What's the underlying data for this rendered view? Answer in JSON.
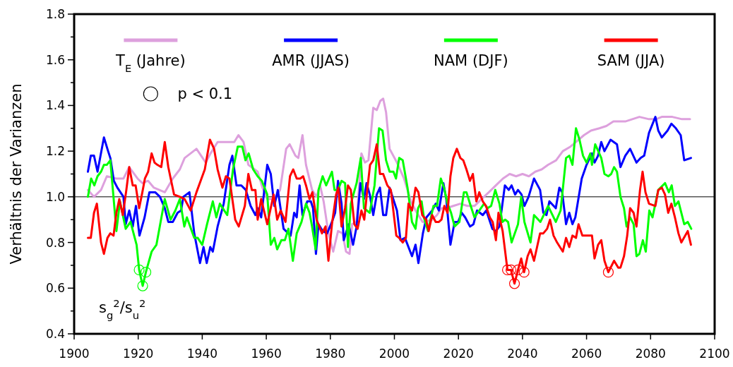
{
  "chart_data": {
    "type": "line",
    "ylabel": "Verhältnis der Varianzen",
    "xlim": [
      1900,
      2100
    ],
    "ylim": [
      0.4,
      1.8
    ],
    "xticks": [
      1900,
      1920,
      1940,
      1960,
      1980,
      2000,
      2020,
      2040,
      2060,
      2080,
      2100
    ],
    "yticks": [
      {
        "value": 0.4,
        "label": "0.4"
      },
      {
        "value": 0.5,
        "label": null
      },
      {
        "value": 0.6,
        "label": "0.6"
      },
      {
        "value": 0.7,
        "label": null
      },
      {
        "value": 0.8,
        "label": "0.8"
      },
      {
        "value": 0.9,
        "label": null
      },
      {
        "value": 1,
        "label": "1.0"
      },
      {
        "value": 1.1,
        "label": null
      },
      {
        "value": 1.2,
        "label": "1.2"
      },
      {
        "value": 1.3,
        "label": null
      },
      {
        "value": 1.4,
        "label": "1.4"
      },
      {
        "value": 1.5,
        "label": null
      },
      {
        "value": 1.6,
        "label": "1.6"
      },
      {
        "value": 1.7,
        "label": null
      },
      {
        "value": 1.8,
        "label": "1.8"
      }
    ],
    "grid": false,
    "legend": "top",
    "ref_lines": [
      {
        "axis": "y",
        "value": 1,
        "color": "#000000"
      }
    ],
    "annotations": [
      "s$_{g}$$^{2}$/s$_{u}$$^{2}$",
      "p < 0.1"
    ],
    "series": [
      {
        "name": "T$_{E}$ (Jahre)",
        "color": "#dda0dd",
        "x": [
          1904.3,
          1906.2,
          1908.4,
          1910.2,
          1913.2,
          1915.4,
          1917.2,
          1919.8,
          1921.3,
          1923.1,
          1924.9,
          1928.3,
          1930.8,
          1933,
          1934.5,
          1938.2,
          1941.1,
          1942.6,
          1944.8,
          1947.8,
          1950,
          1951.3,
          1952.9,
          1954.4,
          1957.3,
          1958.8,
          1960.3,
          1962.5,
          1964.3,
          1966.2,
          1967.3,
          1969.1,
          1970,
          1971.3,
          1972.4,
          1974.3,
          1975.7,
          1976.8,
          1977.9,
          1979.4,
          1980.9,
          1982.4,
          1983.8,
          1984.9,
          1986,
          1986.8,
          1988.2,
          1989.7,
          1990.8,
          1991.9,
          1993.4,
          1994.5,
          1995.6,
          1996.5,
          1997.4,
          1998.5,
          2000.8,
          2003,
          2005.2,
          2006.6,
          2008.8,
          2011.8,
          2013.3,
          2014.7,
          2016.2,
          2018.4,
          2020.6,
          2022.8,
          2025,
          2027.2,
          2029.5,
          2031.7,
          2033.9,
          2036,
          2038,
          2040,
          2042,
          2044,
          2046,
          2048,
          2050.5,
          2052.6,
          2055,
          2056.7,
          2059.2,
          2061.4,
          2064,
          2066.2,
          2068.4,
          2072.1,
          2074.3,
          2076.5,
          2079.5,
          2081.7,
          2083.5,
          2086.8,
          2089.8,
          2092.3
        ],
        "values": [
          1.03,
          1.0,
          1.03,
          1.09,
          1.08,
          1.08,
          1.13,
          1.08,
          1.06,
          1.07,
          1.04,
          1.02,
          1.08,
          1.12,
          1.17,
          1.21,
          1.15,
          1.19,
          1.24,
          1.24,
          1.24,
          1.27,
          1.24,
          1.14,
          1.11,
          1.04,
          0.99,
          0.99,
          1.03,
          1.21,
          1.23,
          1.18,
          1.17,
          1.27,
          1.14,
          1.03,
          1.0,
          1.05,
          0.98,
          0.84,
          0.76,
          0.85,
          0.84,
          0.76,
          0.75,
          0.88,
          0.89,
          1.19,
          1.15,
          1.16,
          1.39,
          1.38,
          1.42,
          1.43,
          1.37,
          1.21,
          1.15,
          1.08,
          0.98,
          0.94,
          0.89,
          0.9,
          0.92,
          0.95,
          0.95,
          0.96,
          0.97,
          0.96,
          0.96,
          0.99,
          1.02,
          1.05,
          1.08,
          1.1,
          1.09,
          1.1,
          1.09,
          1.11,
          1.12,
          1.14,
          1.16,
          1.2,
          1.22,
          1.24,
          1.27,
          1.29,
          1.3,
          1.31,
          1.33,
          1.33,
          1.34,
          1.35,
          1.34,
          1.34,
          1.35,
          1.35,
          1.34,
          1.34
        ]
      },
      {
        "name": "AMR (JJAS)",
        "color": "#0000ff",
        "x": [
          1904.3,
          1905.2,
          1906.2,
          1907.3,
          1909.3,
          1910.6,
          1911.3,
          1912.4,
          1913.5,
          1915.4,
          1916.1,
          1917.2,
          1918.3,
          1919.3,
          1920.4,
          1922,
          1923.5,
          1925.3,
          1926.8,
          1928.3,
          1929.4,
          1930.8,
          1932.3,
          1933.4,
          1934.1,
          1936,
          1937.5,
          1939.3,
          1940.4,
          1941.4,
          1942.5,
          1943.3,
          1944.8,
          1946.7,
          1948.5,
          1949.4,
          1950.7,
          1952.2,
          1953.6,
          1955.1,
          1956.6,
          1957.3,
          1958.4,
          1960.3,
          1961.4,
          1962.5,
          1963.6,
          1965.4,
          1967.6,
          1968.7,
          1969.5,
          1970.4,
          1971.3,
          1972.8,
          1973.9,
          1974.6,
          1975.5,
          1976.3,
          1977.6,
          1979,
          1980.5,
          1981.5,
          1982.4,
          1983.5,
          1984.2,
          1985.7,
          1987.1,
          1988.2,
          1989.4,
          1990.5,
          1991.3,
          1992.3,
          1993.4,
          1994.5,
          1995.5,
          1996.5,
          1997.4,
          1998.5,
          2000.8,
          2001.9,
          2003.3,
          2005.5,
          2006.6,
          2007.5,
          2008.9,
          2010,
          2011.8,
          2012.9,
          2013.9,
          2015.3,
          2016.2,
          2017.5,
          2018.8,
          2019.9,
          2021,
          2022.1,
          2023.6,
          2024.7,
          2025.8,
          2027.6,
          2028.7,
          2030.6,
          2031.7,
          2032.8,
          2034.5,
          2035.7,
          2036.6,
          2037.7,
          2038.6,
          2039.7,
          2040.6,
          2041.9,
          2043.6,
          2045.5,
          2046.5,
          2047.5,
          2048.4,
          2050.4,
          2051.5,
          2052.4,
          2053.6,
          2054.6,
          2055.6,
          2056.5,
          2058.5,
          2060,
          2061.7,
          2062.5,
          2063.6,
          2064.6,
          2065.6,
          2067.5,
          2069.5,
          2070.6,
          2072.1,
          2073.6,
          2075.6,
          2076.9,
          2078,
          2079.5,
          2081.5,
          2082.4,
          2083.5,
          2085.3,
          2086.5,
          2087.9,
          2089.4,
          2090.5,
          2092.6
        ],
        "values": [
          1.11,
          1.18,
          1.18,
          1.11,
          1.26,
          1.2,
          1.17,
          1.07,
          1.04,
          1.0,
          0.88,
          0.94,
          0.87,
          0.96,
          0.83,
          0.91,
          1.02,
          1.02,
          1.0,
          0.95,
          0.89,
          0.89,
          0.93,
          0.94,
          1.0,
          1.02,
          0.84,
          0.71,
          0.78,
          0.71,
          0.78,
          0.76,
          0.87,
          0.97,
          1.14,
          1.18,
          1.05,
          1.05,
          1.03,
          0.96,
          0.92,
          0.95,
          0.91,
          1.14,
          1.1,
          0.96,
          1.03,
          0.86,
          0.83,
          0.93,
          0.91,
          1.05,
          0.92,
          0.98,
          0.98,
          0.95,
          0.75,
          0.88,
          0.85,
          0.84,
          0.89,
          0.93,
          1.07,
          0.97,
          0.81,
          0.88,
          0.79,
          0.87,
          1.06,
          0.99,
          1.06,
          1.01,
          0.92,
          1.01,
          1.04,
          0.92,
          0.92,
          1.04,
          0.94,
          0.81,
          0.82,
          0.74,
          0.79,
          0.71,
          0.84,
          0.91,
          0.94,
          0.97,
          0.94,
          1.06,
          0.99,
          0.79,
          0.89,
          0.89,
          0.93,
          0.91,
          0.87,
          0.88,
          0.94,
          0.92,
          0.94,
          0.86,
          0.85,
          0.87,
          1.05,
          1.03,
          1.05,
          1.01,
          1.03,
          1.01,
          0.96,
          1.0,
          1.08,
          1.03,
          0.93,
          0.92,
          0.98,
          0.95,
          1.04,
          1.02,
          0.88,
          0.93,
          0.88,
          0.91,
          1.08,
          1.14,
          1.19,
          1.15,
          1.18,
          1.24,
          1.2,
          1.25,
          1.23,
          1.13,
          1.18,
          1.21,
          1.15,
          1.17,
          1.18,
          1.28,
          1.35,
          1.29,
          1.26,
          1.29,
          1.32,
          1.3,
          1.27,
          1.16,
          1.17
        ]
      },
      {
        "name": "NAM (DJF)",
        "color": "#00ff00",
        "x": [
          1904.3,
          1905.3,
          1906.3,
          1907.3,
          1908.4,
          1909.3,
          1910.2,
          1911.3,
          1913.2,
          1914.3,
          1916.1,
          1917.6,
          1919.5,
          1920.3,
          1921.4,
          1922.4,
          1924.2,
          1925.7,
          1928.3,
          1930.1,
          1931.6,
          1933,
          1934.4,
          1935.2,
          1937.5,
          1938.6,
          1940,
          1941.5,
          1943.3,
          1944.4,
          1945.5,
          1947.8,
          1949.6,
          1951.1,
          1952.5,
          1953.5,
          1954.5,
          1955.9,
          1957.3,
          1958.6,
          1960.3,
          1961.4,
          1962.5,
          1963.4,
          1964.7,
          1965.8,
          1966.9,
          1968.3,
          1969.5,
          1971,
          1972.4,
          1973.5,
          1974.3,
          1975.4,
          1976.3,
          1977.6,
          1978.7,
          1980.5,
          1981.3,
          1982.4,
          1983.5,
          1984.6,
          1985.5,
          1986.4,
          1988.2,
          1989.5,
          1990.5,
          1992.3,
          1993.8,
          1995.2,
          1996.3,
          1997.4,
          1998.5,
          1999.7,
          2000.5,
          2001.5,
          2002.6,
          2004.1,
          2005.5,
          2006.6,
          2007.4,
          2008.5,
          2009.2,
          2010.5,
          2012.2,
          2013.3,
          2014.5,
          2015.5,
          2016.6,
          2017.7,
          2018.8,
          2020.3,
          2021.7,
          2022.5,
          2023.6,
          2025,
          2026.5,
          2028,
          2029.1,
          2030.2,
          2031.5,
          2032.8,
          2033.7,
          2034.6,
          2035.5,
          2036.6,
          2038.6,
          2039.6,
          2040.6,
          2042.5,
          2043.6,
          2045.6,
          2048,
          2050.4,
          2051.9,
          2053.6,
          2054.6,
          2055.6,
          2056.7,
          2057.8,
          2058.9,
          2060,
          2061.2,
          2061.7,
          2062.7,
          2064.6,
          2065.6,
          2066.8,
          2067.7,
          2068.6,
          2069.5,
          2070.6,
          2071.7,
          2072.5,
          2073.6,
          2074.7,
          2075.6,
          2076.5,
          2077.6,
          2078.5,
          2079.6,
          2080.6,
          2082.4,
          2084.5,
          2085.7,
          2086.6,
          2087.6,
          2088.7,
          2090.5,
          2091.6,
          2092.7
        ],
        "values": [
          1.0,
          1.08,
          1.05,
          1.09,
          1.11,
          1.14,
          1.14,
          1.16,
          0.85,
          0.98,
          0.86,
          0.89,
          0.79,
          0.68,
          0.61,
          0.67,
          0.76,
          0.79,
          0.99,
          0.9,
          0.94,
          0.99,
          0.87,
          0.91,
          0.82,
          0.82,
          0.79,
          0.88,
          0.98,
          0.91,
          0.97,
          0.92,
          1.12,
          1.22,
          1.22,
          1.16,
          1.19,
          1.12,
          1.09,
          1.07,
          1.01,
          0.79,
          0.82,
          0.77,
          0.81,
          0.81,
          0.86,
          0.72,
          0.84,
          0.89,
          0.97,
          0.93,
          0.87,
          0.77,
          1.03,
          1.09,
          1.05,
          1.11,
          1.03,
          1.03,
          1.07,
          1.06,
          0.78,
          0.97,
          1.06,
          1.17,
          0.95,
          0.93,
          1.05,
          1.3,
          1.29,
          1.16,
          1.11,
          1.11,
          1.08,
          1.17,
          1.16,
          1.04,
          0.89,
          0.86,
          0.95,
          0.98,
          0.91,
          0.85,
          0.96,
          0.96,
          1.08,
          1.04,
          0.97,
          0.93,
          0.87,
          0.89,
          1.02,
          1.02,
          0.97,
          0.91,
          0.94,
          0.97,
          0.95,
          0.96,
          1.03,
          0.97,
          0.89,
          0.9,
          0.89,
          0.8,
          0.88,
          1.0,
          0.89,
          0.8,
          0.92,
          0.89,
          0.96,
          0.89,
          0.94,
          1.17,
          1.18,
          1.14,
          1.3,
          1.25,
          1.18,
          1.15,
          1.19,
          1.14,
          1.23,
          1.17,
          1.1,
          1.09,
          1.1,
          1.13,
          1.11,
          1.0,
          0.95,
          0.87,
          0.91,
          0.88,
          0.74,
          0.75,
          0.81,
          0.76,
          0.94,
          0.91,
          1.03,
          1.06,
          1.02,
          1.05,
          0.96,
          0.98,
          0.88,
          0.89,
          0.86
        ]
      },
      {
        "name": "SAM (JJA)",
        "color": "#ff0000",
        "x": [
          1904.3,
          1905.2,
          1906.2,
          1907.1,
          1908.4,
          1909.3,
          1910.4,
          1911.3,
          1912.3,
          1913.2,
          1914.1,
          1915.2,
          1916.3,
          1917.2,
          1918.3,
          1919.2,
          1920.3,
          1921.3,
          1922.1,
          1923.1,
          1924.2,
          1925.1,
          1926,
          1927.2,
          1928.3,
          1929.4,
          1931.2,
          1933,
          1934.5,
          1936.4,
          1938.2,
          1940.8,
          1942.4,
          1943.7,
          1944.8,
          1946.3,
          1947.4,
          1948.5,
          1950.3,
          1951.4,
          1953.3,
          1954.4,
          1955.5,
          1956.6,
          1957.3,
          1958.4,
          1960.3,
          1962.3,
          1963.4,
          1964.5,
          1966,
          1967.4,
          1968.4,
          1969.5,
          1970.6,
          1971.5,
          1972.4,
          1973.5,
          1974.4,
          1975.7,
          1977.4,
          1978.5,
          1979.4,
          1980.5,
          1981.8,
          1982.5,
          1983.5,
          1984.6,
          1985.5,
          1986.4,
          1987.5,
          1988.5,
          1989.7,
          1990.6,
          1991.6,
          1992.4,
          1993.4,
          1994.5,
          1995.5,
          1996.5,
          1997.8,
          1998.9,
          2000.6,
          2001.5,
          2002.6,
          2003.6,
          2004.4,
          2005.5,
          2006.6,
          2007.5,
          2008.7,
          2009.9,
          2010.7,
          2011.8,
          2012.9,
          2013.9,
          2014.7,
          2015.6,
          2016.6,
          2017.5,
          2018.4,
          2019.5,
          2020.6,
          2021.5,
          2022.5,
          2023.6,
          2024.5,
          2025.6,
          2026.5,
          2027.6,
          2028.6,
          2029.8,
          2030.7,
          2031.7,
          2032.5,
          2033.8,
          2035.3,
          2036.4,
          2037.5,
          2038.6,
          2039.6,
          2040.5,
          2041.6,
          2042.5,
          2043.6,
          2045.5,
          2046.5,
          2047.7,
          2048.6,
          2049.7,
          2050.8,
          2052.6,
          2053.6,
          2054.6,
          2055.6,
          2056.7,
          2057.5,
          2058.7,
          2060.3,
          2061.7,
          2062.5,
          2063.6,
          2064.6,
          2065.6,
          2066.8,
          2068.6,
          2069.9,
          2070.6,
          2071.7,
          2072.7,
          2073.6,
          2074.7,
          2075.6,
          2076.7,
          2077.5,
          2078.4,
          2079.5,
          2081.5,
          2082.4,
          2083.5,
          2084.5,
          2085.5,
          2086.5,
          2087.6,
          2088.7,
          2089.6,
          2091.6,
          2092.6
        ],
        "values": [
          0.82,
          0.82,
          0.93,
          0.97,
          0.8,
          0.75,
          0.82,
          0.84,
          0.83,
          0.93,
          0.99,
          0.92,
          1.03,
          1.13,
          1.05,
          1.05,
          0.95,
          1.02,
          1.08,
          1.11,
          1.19,
          1.15,
          1.14,
          1.13,
          1.24,
          1.13,
          1.01,
          1.0,
          0.99,
          0.94,
          1.02,
          1.12,
          1.25,
          1.21,
          1.12,
          1.04,
          1.09,
          1.08,
          0.9,
          0.87,
          0.96,
          1.1,
          1.03,
          1.03,
          0.9,
          0.99,
          0.88,
          1.01,
          0.9,
          0.94,
          0.89,
          1.09,
          1.12,
          1.08,
          1.08,
          1.09,
          1.05,
          0.99,
          1.02,
          0.9,
          0.84,
          0.87,
          0.72,
          0.88,
          1.01,
          1.04,
          0.87,
          0.95,
          1.05,
          1.03,
          0.88,
          0.86,
          0.94,
          0.9,
          1.04,
          1.14,
          1.16,
          1.23,
          1.1,
          1.1,
          1.05,
          1.03,
          0.83,
          0.82,
          0.8,
          0.82,
          0.97,
          0.94,
          1.04,
          1.02,
          0.92,
          0.9,
          0.85,
          0.92,
          0.89,
          0.89,
          0.9,
          0.96,
          0.93,
          1.09,
          1.17,
          1.21,
          1.17,
          1.16,
          1.12,
          1.07,
          1.1,
          0.98,
          1.02,
          0.98,
          0.96,
          0.91,
          0.89,
          0.81,
          0.93,
          0.85,
          0.68,
          0.68,
          0.62,
          0.68,
          0.73,
          0.67,
          0.74,
          0.77,
          0.72,
          0.84,
          0.84,
          0.86,
          0.9,
          0.83,
          0.8,
          0.76,
          0.82,
          0.78,
          0.83,
          0.82,
          0.88,
          0.83,
          0.83,
          0.83,
          0.73,
          0.79,
          0.81,
          0.72,
          0.67,
          0.72,
          0.69,
          0.69,
          0.74,
          0.83,
          0.95,
          0.93,
          0.87,
          1.03,
          1.11,
          1.02,
          0.97,
          0.96,
          1.03,
          1.04,
          1.01,
          0.93,
          0.97,
          0.91,
          0.84,
          0.8,
          0.85,
          0.79
        ]
      },
      {
        "type": "scatter",
        "marker": "circle",
        "x": [
          1920.3,
          1921.4,
          1922.4,
          2035.3,
          2036.4,
          2037.5,
          2038.6,
          2040.5,
          2066.8
        ],
        "values": [
          0.68,
          0.61,
          0.67,
          0.68,
          0.68,
          0.62,
          0.68,
          0.67,
          0.67
        ],
        "colors": [
          "#00ff00",
          "#00ff00",
          "#00ff00",
          "#ff0000",
          "#ff0000",
          "#ff0000",
          "#ff0000",
          "#ff0000",
          "#ff0000"
        ]
      }
    ]
  }
}
